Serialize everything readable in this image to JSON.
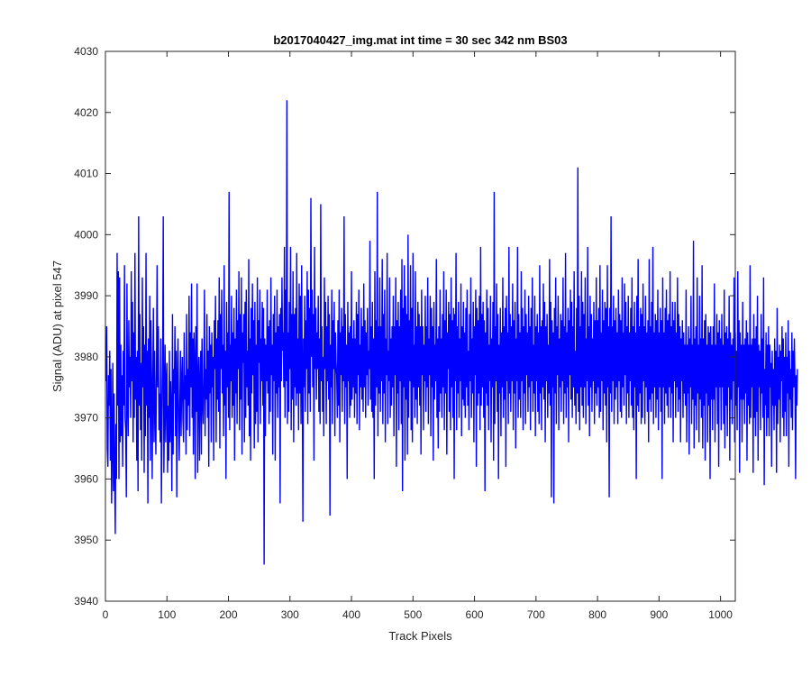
{
  "chart_data": {
    "type": "line",
    "title": "b2017040427_img.mat int time = 30 sec  342 nm BS03",
    "xlabel": "Track Pixels",
    "ylabel": "Signal (ADU) at pixel 547",
    "xlim": [
      0,
      1024
    ],
    "ylim": [
      3940,
      4030
    ],
    "xticks": [
      0,
      100,
      200,
      300,
      400,
      500,
      600,
      700,
      800,
      900,
      1000
    ],
    "yticks": [
      3940,
      3950,
      3960,
      3970,
      3980,
      3990,
      4000,
      4010,
      4020,
      4030
    ],
    "grid": false,
    "legend": "none",
    "series_color": "#0000ff",
    "series": [
      {
        "x_start": 1,
        "x_step": 1,
        "values": [
          3976,
          3985,
          3965,
          3962,
          3977,
          3972,
          3981,
          3963,
          3978,
          3956,
          3966,
          3979,
          3958,
          3974,
          3961,
          3951,
          3969,
          3960,
          3997,
          3972,
          3994,
          3960,
          3993,
          3966,
          3982,
          3967,
          3977,
          3962,
          3981,
          3972,
          3995,
          3970,
          3968,
          3957,
          3992,
          3973,
          3967,
          3986,
          3975,
          3980,
          3970,
          3994,
          3976,
          3989,
          3966,
          3984,
          3970,
          3997,
          3973,
          3980,
          3963,
          3981,
          3958,
          4003,
          3972,
          3987,
          3968,
          3979,
          3963,
          3993,
          3975,
          3985,
          3961,
          3982,
          3967,
          3997,
          3972,
          3981,
          3956,
          3983,
          3970,
          3990,
          3963,
          3986,
          3977,
          3960,
          3975,
          3988,
          3966,
          3981,
          3971,
          3964,
          3978,
          3995,
          3975,
          3985,
          3968,
          3974,
          3966,
          3983,
          3956,
          3969,
          3978,
          4003,
          3961,
          3971,
          3982,
          3966,
          3976,
          3979,
          3961,
          3972,
          3963,
          3981,
          3966,
          3976,
          3971,
          3958,
          3987,
          3964,
          3978,
          3974,
          3985,
          3967,
          3981,
          3957,
          3976,
          3983,
          3970,
          3963,
          3972,
          3981,
          3967,
          3976,
          3980,
          3970,
          3966,
          3984,
          3973,
          3977,
          3964,
          3987,
          3968,
          3978,
          3972,
          3990,
          3967,
          3984,
          3975,
          3992,
          3970,
          3983,
          3964,
          3984,
          3979,
          3960,
          3985,
          3971,
          3992,
          3961,
          3977,
          3980,
          3963,
          3976,
          3981,
          3964,
          3983,
          3973,
          3969,
          3976,
          3991,
          3967,
          3978,
          3973,
          3987,
          3970,
          3981,
          3962,
          3985,
          3974,
          3982,
          3966,
          3984,
          3975,
          3980,
          3963,
          3986,
          3978,
          3990,
          3966,
          3983,
          3973,
          3986,
          3971,
          3993,
          3965,
          3987,
          3978,
          3991,
          3974,
          3982,
          3967,
          3995,
          3972,
          3981,
          3960,
          3989,
          3975,
          3984,
          3970,
          4007,
          3968,
          3982,
          3976,
          3990,
          3970,
          3984,
          3972,
          3988,
          3963,
          3983,
          3974,
          3991,
          3969,
          3986,
          3978,
          3994,
          3968,
          3987,
          3973,
          3993,
          3964,
          3984,
          3979,
          3987,
          3966,
          3989,
          3970,
          3991,
          3975,
          3981,
          3972,
          3996,
          3967,
          3983,
          3963,
          3988,
          3974,
          3992,
          3977,
          3986,
          3965,
          3989,
          3969,
          3982,
          3971,
          3993,
          3966,
          3986,
          3979,
          3991,
          3969,
          3983,
          3976,
          3989,
          3972,
          3988,
          3946,
          3983,
          3967,
          3982,
          3976,
          3991,
          3974,
          3985,
          3969,
          3986,
          3971,
          3993,
          3977,
          3982,
          3964,
          3987,
          3976,
          3990,
          3963,
          3984,
          3974,
          3991,
          3970,
          3985,
          3975,
          3987,
          3956,
          3988,
          3976,
          3993,
          3981,
          3984,
          3975,
          3998,
          3970,
          3991,
          3976,
          4022,
          3969,
          3984,
          3971,
          3989,
          3978,
          3998,
          3968,
          3987,
          3973,
          3994,
          3966,
          3987,
          3975,
          3988,
          3972,
          3997,
          3974,
          3983,
          3968,
          3992,
          3974,
          3990,
          3969,
          3995,
          3978,
          3953,
          3983,
          3975,
          3990,
          3971,
          3986,
          3978,
          3994,
          3969,
          3991,
          3974,
          3988,
          3971,
          4006,
          3980,
          3991,
          3975,
          3987,
          3963,
          3998,
          3978,
          3988,
          3973,
          3984,
          3978,
          3990,
          3971,
          3983,
          3969,
          4005,
          3976,
          3985,
          3971,
          3980,
          3967,
          3993,
          3978,
          3989,
          3969,
          3985,
          3976,
          3990,
          3973,
          3987,
          3954,
          3982,
          3975,
          3991,
          3969,
          3986,
          3978,
          3989,
          3967,
          3984,
          3979,
          3977,
          3970,
          3986,
          3972,
          3991,
          3966,
          3984,
          3977,
          3988,
          3971,
          3985,
          3976,
          4003,
          3969,
          3987,
          3975,
          3982,
          3960,
          3989,
          3976,
          3984,
          3970,
          3985,
          3972,
          3994,
          3973,
          3983,
          3975,
          3986,
          3970,
          3983,
          3974,
          3989,
          3969,
          3987,
          3977,
          3991,
          3968,
          3982,
          3975,
          3988,
          3973,
          3985,
          3971,
          3992,
          3975,
          3986,
          3970,
          3984,
          3977,
          3988,
          3972,
          3981,
          3978,
          3999,
          3973,
          3985,
          3971,
          3989,
          3970,
          3983,
          3960,
          3994,
          3972,
          3986,
          3975,
          4007,
          3967,
          3985,
          3974,
          3993,
          3971,
          3985,
          3976,
          3996,
          3969,
          3987,
          3974,
          3991,
          3966,
          3983,
          3977,
          3997,
          3969,
          3981,
          3976,
          3993,
          3970,
          3983,
          3972,
          3985,
          3975,
          3990,
          3967,
          3985,
          3977,
          3993,
          3962,
          3986,
          3974,
          3989,
          3968,
          3985,
          3976,
          3991,
          3969,
          3996,
          3958,
          3988,
          3975,
          3995,
          3963,
          3990,
          3973,
          3987,
          3964,
          4000,
          3970,
          3986,
          3976,
          3995,
          3968,
          3988,
          3966,
          3997,
          3975,
          3982,
          3970,
          3994,
          3973,
          3985,
          3969,
          3989,
          3975,
          3987,
          3972,
          3985,
          3964,
          3991,
          3977,
          3985,
          3968,
          3982,
          3976,
          3990,
          3971,
          3985,
          3975,
          3993,
          3969,
          3983,
          3977,
          3990,
          3967,
          3988,
          3975,
          3985,
          3963,
          3989,
          3973,
          3982,
          3976,
          3996,
          3970,
          3983,
          3965,
          3985,
          3971,
          3991,
          3974,
          3983,
          3970,
          3987,
          3975,
          3994,
          3968,
          3986,
          3974,
          3991,
          3964,
          3984,
          3978,
          3989,
          3971,
          3987,
          3968,
          3993,
          3975,
          3986,
          3970,
          3988,
          3960,
          3987,
          3976,
          3997,
          3968,
          3985,
          3974,
          3989,
          3970,
          3983,
          3976,
          3992,
          3967,
          3985,
          3973,
          3989,
          3972,
          3984,
          3970,
          3988,
          3975,
          3991,
          3972,
          3981,
          3968,
          3987,
          3976,
          3993,
          3970,
          3983,
          3974,
          3989,
          3966,
          3985,
          3977,
          3991,
          3962,
          3988,
          3972,
          3986,
          3974,
          3990,
          3968,
          3998,
          3972,
          3987,
          3975,
          3989,
          3970,
          3986,
          3958,
          3984,
          3974,
          3991,
          3972,
          3988,
          3968,
          3982,
          3976,
          3990,
          3966,
          3983,
          3975,
          3989,
          3963,
          4007,
          3969,
          3985,
          3976,
          3992,
          3971,
          3987,
          3960,
          3982,
          3974,
          3988,
          3967,
          3984,
          3975,
          3993,
          3970,
          3985,
          3973,
          3988,
          3962,
          3990,
          3976,
          3984,
          3969,
          3998,
          3974,
          3987,
          3971,
          3985,
          3976,
          3992,
          3968,
          3986,
          3974,
          3989,
          3965,
          3983,
          3976,
          3998,
          3970,
          3987,
          3973,
          3984,
          3970,
          3994,
          3976,
          3988,
          3968,
          3985,
          3974,
          3991,
          3969,
          3987,
          3977,
          3984,
          3971,
          3990,
          3975,
          3985,
          3968,
          3988,
          3976,
          3993,
          3971,
          3982,
          3974,
          3990,
          3967,
          3985,
          3976,
          3987,
          3971,
          3984,
          3969,
          3995,
          3974,
          3985,
          3968,
          3986,
          3975,
          3992,
          3973,
          3989,
          3966,
          3985,
          3976,
          3987,
          3970,
          3982,
          3974,
          3996,
          3972,
          3989,
          3957,
          3986,
          3975,
          3984,
          3956,
          3988,
          3974,
          3993,
          3969,
          3985,
          3977,
          3990,
          3968,
          3983,
          3975,
          3987,
          3971,
          3986,
          3976,
          3993,
          3969,
          3985,
          3974,
          3997,
          3970,
          3984,
          3975,
          3988,
          3966,
          3986,
          3977,
          3991,
          3973,
          3989,
          3970,
          3985,
          3975,
          3994,
          3972,
          3981,
          3969,
          3988,
          3974,
          4011,
          3971,
          3990,
          3968,
          3985,
          3975,
          3994,
          3972,
          3989,
          3970,
          3987,
          3975,
          3993,
          3969,
          3983,
          3976,
          3998,
          3972,
          3985,
          3967,
          3990,
          3975,
          3987,
          3971,
          3983,
          3976,
          3989,
          3969,
          3986,
          3974,
          3993,
          3972,
          3986,
          3975,
          3988,
          3970,
          3995,
          3971,
          3984,
          3976,
          3991,
          3968,
          3986,
          3974,
          3989,
          3972,
          3988,
          3966,
          3995,
          3975,
          3985,
          3957,
          3988,
          3974,
          4003,
          3971,
          3985,
          3976,
          3990,
          3969,
          3986,
          3973,
          3988,
          3975,
          3984,
          3969,
          3991,
          3976,
          3987,
          3971,
          3986,
          3970,
          3993,
          3975,
          3984,
          3972,
          3992,
          3977,
          3989,
          3969,
          3985,
          3974,
          3990,
          3970,
          3984,
          3976,
          3988,
          3972,
          3993,
          3970,
          3985,
          3968,
          3989,
          3975,
          3984,
          3960,
          3990,
          3972,
          3996,
          3971,
          3985,
          3974,
          3988,
          3969,
          3987,
          3970,
          3992,
          3976,
          3985,
          3969,
          3990,
          3975,
          3984,
          3971,
          3986,
          3966,
          3996,
          3973,
          3985,
          3971,
          3989,
          3974,
          3998,
          3969,
          3984,
          3975,
          3987,
          3970,
          3986,
          3973,
          3991,
          3968,
          3984,
          3975,
          3988,
          3971,
          3986,
          3960,
          3993,
          3975,
          3984,
          3969,
          3988,
          3974,
          3991,
          3972,
          3986,
          3970,
          3987,
          3975,
          3994,
          3970,
          3985,
          3974,
          3989,
          3966,
          3986,
          3976,
          3989,
          3970,
          3984,
          3975,
          3993,
          3971,
          3987,
          3973,
          3985,
          3966,
          3983,
          3976,
          3986,
          3970,
          3984,
          3974,
          3982,
          3972,
          3991,
          3966,
          3982,
          3974,
          3985,
          3964,
          3983,
          3975,
          3990,
          3969,
          3982,
          3973,
          3999,
          3965,
          3983,
          3972,
          3985,
          3968,
          3993,
          3974,
          3982,
          3966,
          3990,
          3973,
          3983,
          3970,
          3995,
          3965,
          3983,
          3972,
          3986,
          3963,
          3987,
          3974,
          3982,
          3966,
          3985,
          3972,
          3984,
          3960,
          3985,
          3973,
          3982,
          3968,
          3985,
          3973,
          3992,
          3966,
          3982,
          3975,
          3987,
          3969,
          3984,
          3962,
          3986,
          3975,
          3983,
          3968,
          3987,
          3975,
          3982,
          3969,
          3991,
          3965,
          3984,
          3972,
          3985,
          3967,
          3983,
          3975,
          3990,
          3963,
          3984,
          3973,
          3982,
          3969,
          3983,
          3976,
          3993,
          3966,
          3984,
          3972,
          3981,
          3968,
          3994,
          3975,
          3986,
          3961,
          3984,
          3973,
          3982,
          3966,
          3989,
          3973,
          3982,
          3969,
          3983,
          3974,
          3986,
          3963,
          3984,
          3972,
          3982,
          3969,
          3995,
          3970,
          3982,
          3975,
          3983,
          3961,
          3987,
          3970,
          3983,
          3967,
          3985,
          3971,
          3990,
          3963,
          3982,
          3975,
          3981,
          3968,
          3987,
          3974,
          3983,
          3970,
          3993,
          3959,
          3978,
          3972,
          3984,
          3967,
          3982,
          3970,
          3985,
          3967,
          3982,
          3975,
          3979,
          3962,
          3981,
          3972,
          3978,
          3968,
          3983,
          3972,
          3981,
          3961,
          3988,
          3969,
          3980,
          3973,
          3982,
          3966,
          3981,
          3976,
          3985,
          3970,
          3983,
          3967,
          3980,
          3971,
          3984,
          3967,
          3980,
          3974,
          3986,
          3962,
          3981,
          3973,
          3978,
          3970,
          3984,
          3968,
          3981,
          3975,
          3983,
          3976,
          3960,
          3977,
          3972,
          3978
        ]
      }
    ]
  }
}
